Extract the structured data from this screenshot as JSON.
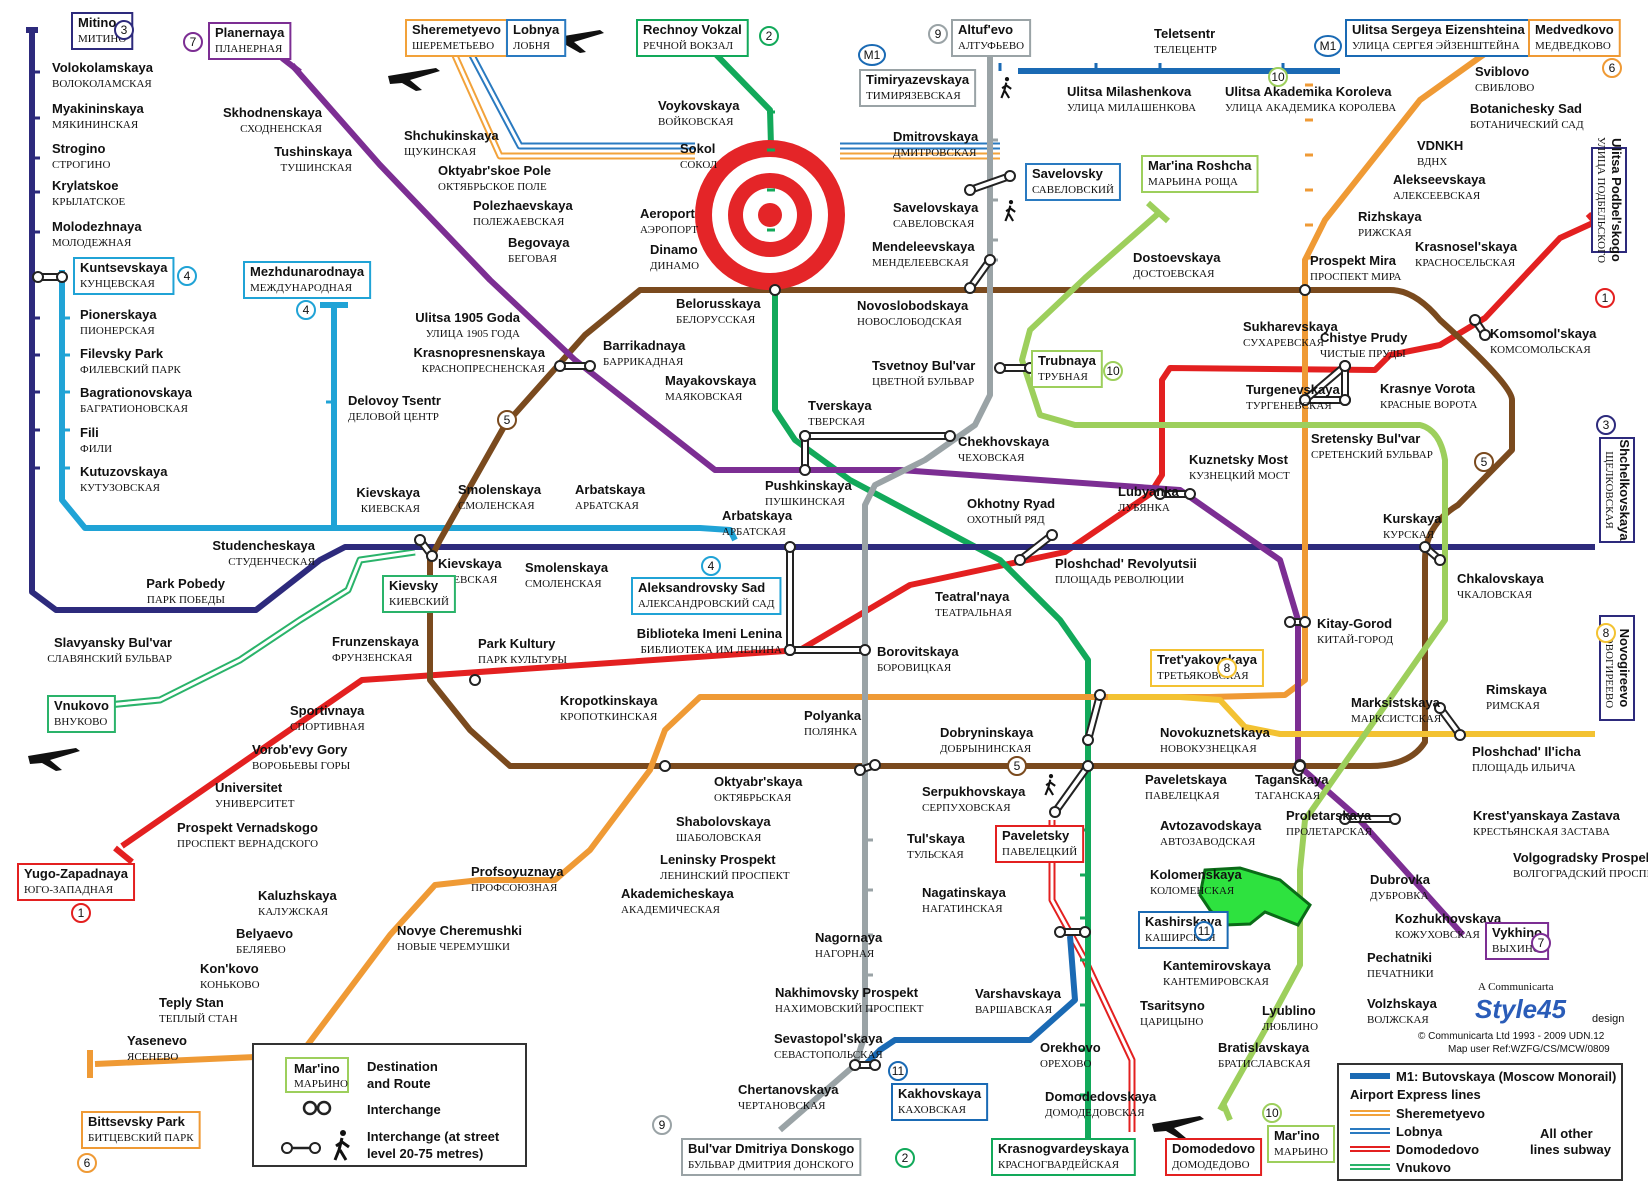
{
  "colors": {
    "line1": "#e32020",
    "line2": "#12a95a",
    "line3": "#2d2a7c",
    "line4": "#20a3d6",
    "line5": "#7a4a1e",
    "line6": "#ef9a35",
    "line7": "#7c2e93",
    "line8": "#f3c232",
    "line9": "#9aa3a6",
    "line10": "#9dcf5c",
    "line11": "#1a6ab4",
    "express_sheremetyevo": "#f2a23a",
    "express_lobnya": "#2a7ac0",
    "express_domodedovo": "#e32020",
    "express_vnukovo": "#2ab36a",
    "monorail": "#1a6ab4"
  },
  "stations": [
    {
      "id": "mitino",
      "en": "Mitino",
      "ru": "МИТИНО"
    },
    {
      "id": "volokolamskaya",
      "en": "Volokolamskaya",
      "ru": "ВОЛОКОЛАМСКАЯ"
    },
    {
      "id": "myakininskaya",
      "en": "Myakininskaya",
      "ru": "МЯКИНИНСКАЯ"
    },
    {
      "id": "strogino",
      "en": "Strogino",
      "ru": "СТРОГИНО"
    },
    {
      "id": "krylatskoe",
      "en": "Krylatskoe",
      "ru": "КРЫЛАТСКОЕ"
    },
    {
      "id": "molodezhnaya",
      "en": "Molodezhnaya",
      "ru": "МОЛОДЕЖНАЯ"
    },
    {
      "id": "kuntsevskaya",
      "en": "Kuntsevskaya",
      "ru": "КУНЦЕВСКАЯ"
    },
    {
      "id": "pionerskaya",
      "en": "Pionerskaya",
      "ru": "ПИОНЕРСКАЯ"
    },
    {
      "id": "filevsky_park",
      "en": "Filevsky Park",
      "ru": "ФИЛЕВСКИЙ ПАРК"
    },
    {
      "id": "bagrationovskaya",
      "en": "Bagrationovskaya",
      "ru": "БАГРАТИОНОВСКАЯ"
    },
    {
      "id": "fili",
      "en": "Fili",
      "ru": "ФИЛИ"
    },
    {
      "id": "kutuzovskaya",
      "en": "Kutuzovskaya",
      "ru": "КУТУЗОВСКАЯ"
    },
    {
      "id": "studencheskaya",
      "en": "Studencheskaya",
      "ru": "СТУДЕНЧЕСКАЯ"
    },
    {
      "id": "park_pobedy",
      "en": "Park Pobedy",
      "ru": "ПАРК ПОБЕДЫ"
    },
    {
      "id": "slavyansky",
      "en": "Slavyansky Bul'var",
      "ru": "СЛАВЯНСКИЙ БУЛЬВАР"
    },
    {
      "id": "planernaya",
      "en": "Planernaya",
      "ru": "ПЛАНЕРНАЯ"
    },
    {
      "id": "skhodnenskaya",
      "en": "Skhodnenskaya",
      "ru": "СХОДНЕНСКАЯ"
    },
    {
      "id": "tushinskaya",
      "en": "Tushinskaya",
      "ru": "ТУШИНСКАЯ"
    },
    {
      "id": "shchukinskaya",
      "en": "Shchukinskaya",
      "ru": "ЩУКИНСКАЯ"
    },
    {
      "id": "oktyabrskoe_pole",
      "en": "Oktyabr'skoe Pole",
      "ru": "ОКТЯБРЬСКОЕ ПОЛЕ"
    },
    {
      "id": "polezhaevskaya",
      "en": "Polezhaevskaya",
      "ru": "ПОЛЕЖАЕВСКАЯ"
    },
    {
      "id": "begovaya",
      "en": "Begovaya",
      "ru": "БЕГОВАЯ"
    },
    {
      "id": "ulitsa1905",
      "en": "Ulitsa 1905 Goda",
      "ru": "УЛИЦА 1905 ГОДА"
    },
    {
      "id": "barrikadnaya",
      "en": "Barrikadnaya",
      "ru": "БАРРИКАДНАЯ"
    },
    {
      "id": "krasnopresnenskaya",
      "en": "Krasnopresnenskaya",
      "ru": "КРАСНОПРЕСНЕНСКАЯ"
    },
    {
      "id": "mezhdunarodnaya",
      "en": "Mezhdunarodnaya",
      "ru": "МЕЖДУНАРОДНАЯ"
    },
    {
      "id": "delovoy",
      "en": "Delovoy Tsentr",
      "ru": "ДЕЛОВОЙ ЦЕНТР"
    },
    {
      "id": "kievskaya_a",
      "en": "Kievskaya",
      "ru": "КИЕВСКАЯ"
    },
    {
      "id": "kievskaya_b",
      "en": "Kievskaya",
      "ru": "КИЕВСКАЯ"
    },
    {
      "id": "smolenskaya_a",
      "en": "Smolenskaya",
      "ru": "СМОЛЕНСКАЯ"
    },
    {
      "id": "arbatskaya_a",
      "en": "Arbatskaya",
      "ru": "АРБАТСКАЯ"
    },
    {
      "id": "smolenskaya_b",
      "en": "Smolenskaya",
      "ru": "СМОЛЕНСКАЯ"
    },
    {
      "id": "arbatskaya_b",
      "en": "Arbatskaya",
      "ru": "АРБАТСКАЯ"
    },
    {
      "id": "aleksandrovsky",
      "en": "Aleksandrovsky Sad",
      "ru": "АЛЕКСАНДРОВСКИЙ САД"
    },
    {
      "id": "biblioteka",
      "en": "Biblioteka Imeni Lenina",
      "ru": "БИБЛИОТЕКА ИМ ЛЕНИНА"
    },
    {
      "id": "borovitskaya",
      "en": "Borovitskaya",
      "ru": "БОРОВИЦКАЯ"
    },
    {
      "id": "frunzenskaya",
      "en": "Frunzenskaya",
      "ru": "ФРУНЗЕНСКАЯ"
    },
    {
      "id": "park_kultury",
      "en": "Park Kultury",
      "ru": "ПАРК КУЛЬТУРЫ"
    },
    {
      "id": "kropotkinskaya",
      "en": "Kropotkinskaya",
      "ru": "КРОПОТКИНСКАЯ"
    },
    {
      "id": "sportivnaya",
      "en": "Sportivnaya",
      "ru": "СПОРТИВНАЯ"
    },
    {
      "id": "vorobevy",
      "en": "Vorob'evy Gory",
      "ru": "ВОРОБЬЕВЫ ГОРЫ"
    },
    {
      "id": "universitet",
      "en": "Universitet",
      "ru": "УНИВЕРСИТЕТ"
    },
    {
      "id": "prospekt_vernadskogo",
      "en": "Prospekt Vernadskogo",
      "ru": "ПРОСПЕКТ ВЕРНАДСКОГО"
    },
    {
      "id": "yugo_zapadnaya",
      "en": "Yugo-Zapadnaya",
      "ru": "ЮГО-ЗАПАДНАЯ"
    },
    {
      "id": "rechnoy",
      "en": "Rechnoy Vokzal",
      "ru": "РЕЧНОЙ ВОКЗАЛ"
    },
    {
      "id": "voykovskaya",
      "en": "Voykovskaya",
      "ru": "ВОЙКОВСКАЯ"
    },
    {
      "id": "sokol",
      "en": "Sokol",
      "ru": "СОКОЛ"
    },
    {
      "id": "aeroport",
      "en": "Aeroport",
      "ru": "АЭРОПОРТ"
    },
    {
      "id": "dinamo",
      "en": "Dinamo",
      "ru": "ДИНАМО"
    },
    {
      "id": "belorusskaya",
      "en": "Belorusskaya",
      "ru": "БЕЛОРУССКАЯ"
    },
    {
      "id": "mayakovskaya",
      "en": "Mayakovskaya",
      "ru": "МАЯКОВСКАЯ"
    },
    {
      "id": "tverskaya",
      "en": "Tverskaya",
      "ru": "ТВЕРСКАЯ"
    },
    {
      "id": "pushkinskaya",
      "en": "Pushkinskaya",
      "ru": "ПУШКИНСКАЯ"
    },
    {
      "id": "chekhovskaya",
      "en": "Chekhovskaya",
      "ru": "ЧЕХОВСКАЯ"
    },
    {
      "id": "okhotny",
      "en": "Okhotny Ryad",
      "ru": "ОХОТНЫЙ РЯД"
    },
    {
      "id": "teatralnaya",
      "en": "Teatral'naya",
      "ru": "ТЕАТРАЛЬНАЯ"
    },
    {
      "id": "ploshchad_rev",
      "en": "Ploshchad' Revolyutsii",
      "ru": "ПЛОЩАДЬ РЕВОЛЮЦИИ"
    },
    {
      "id": "altufevo",
      "en": "Altuf'evo",
      "ru": "АЛТУФЬЕВО"
    },
    {
      "id": "timiryazevskaya",
      "en": "Timiryazevskaya",
      "ru": "ТИМИРЯЗЕВСКАЯ"
    },
    {
      "id": "dmitrovskaya",
      "en": "Dmitrovskaya",
      "ru": "ДМИТРОВСКАЯ"
    },
    {
      "id": "savelovskaya",
      "en": "Savelovskaya",
      "ru": "САВЕЛОВСКАЯ"
    },
    {
      "id": "savelovsky",
      "en": "Savelovsky",
      "ru": "САВЕЛОВСКИЙ"
    },
    {
      "id": "mendeleevskaya",
      "en": "Mendeleevskaya",
      "ru": "МЕНДЕЛЕЕВСКАЯ"
    },
    {
      "id": "novoslobodskaya",
      "en": "Novoslobodskaya",
      "ru": "НОВОСЛОБОДСКАЯ"
    },
    {
      "id": "tsvetnoy",
      "en": "Tsvetnoy Bul'var",
      "ru": "ЦВЕТНОЙ БУЛЬВАР"
    },
    {
      "id": "trubnaya",
      "en": "Trubnaya",
      "ru": "ТРУБНАЯ"
    },
    {
      "id": "marina_roshcha",
      "en": "Mar'ina Roshcha",
      "ru": "МАРЬИНА РОЩА"
    },
    {
      "id": "dostoevskaya",
      "en": "Dostoevskaya",
      "ru": "ДОСТОЕВСКАЯ"
    },
    {
      "id": "teletsentr",
      "en": "Teletsentr",
      "ru": "ТЕЛЕЦЕНТР"
    },
    {
      "id": "ulitsa_milashenkova",
      "en": "Ulitsa Milashenkova",
      "ru": "УЛИЦА МИЛАШЕНКОВА"
    },
    {
      "id": "ulitsa_korolyova",
      "en": "Ulitsa Akademika Koroleva",
      "ru": "УЛИЦА АКАДЕМИКА КОРОЛЕВА"
    },
    {
      "id": "ulitsa_eizenshteina",
      "en": "Ulitsa Sergeya Eizenshteina",
      "ru": "УЛИЦА СЕРГЕЯ ЭЙЗЕНШТЕЙНА"
    },
    {
      "id": "medvedkovo",
      "en": "Medvedkovo",
      "ru": "МЕДВЕДКОВО"
    },
    {
      "id": "sviblovo",
      "en": "Sviblovo",
      "ru": "СВИБЛОВО"
    },
    {
      "id": "botanichesky",
      "en": "Botanichesky Sad",
      "ru": "БОТАНИЧЕСКИЙ САД"
    },
    {
      "id": "vdnkh",
      "en": "VDNKH",
      "ru": "ВДНХ"
    },
    {
      "id": "alekseevskaya",
      "en": "Alekseevskaya",
      "ru": "АЛЕКСЕЕВСКАЯ"
    },
    {
      "id": "rizhskaya",
      "en": "Rizhskaya",
      "ru": "РИЖСКАЯ"
    },
    {
      "id": "prospekt_mira",
      "en": "Prospekt Mira",
      "ru": "ПРОСПЕКТ МИРА"
    },
    {
      "id": "sukharevskaya",
      "en": "Sukharevskaya",
      "ru": "СУХАРЕВСКАЯ"
    },
    {
      "id": "podbelskogo",
      "en": "Ulitsa Podbel'skogo",
      "ru": "УЛИЦА ПОДБЕЛЬСКОГО"
    },
    {
      "id": "krasnoselskaya",
      "en": "Krasnosel'skaya",
      "ru": "КРАСНОСЕЛЬСКАЯ"
    },
    {
      "id": "komsomolskaya",
      "en": "Komsomol'skaya",
      "ru": "КОМСОМОЛЬСКАЯ"
    },
    {
      "id": "krasnye_vorota",
      "en": "Krasnye Vorota",
      "ru": "КРАСНЫЕ ВОРОТА"
    },
    {
      "id": "chistye_prudy",
      "en": "Chistye Prudy",
      "ru": "ЧИСТЫЕ ПРУДЫ"
    },
    {
      "id": "turgenevskaya",
      "en": "Turgenevskaya",
      "ru": "ТУРГЕНЕВСКАЯ"
    },
    {
      "id": "sretensky",
      "en": "Sretensky Bul'var",
      "ru": "СРЕТЕНСКИЙ БУЛЬВАР"
    },
    {
      "id": "kuznetsky",
      "en": "Kuznetsky Most",
      "ru": "КУЗНЕЦКИЙ МОСТ"
    },
    {
      "id": "lubyanka",
      "en": "Lubyanka",
      "ru": "ЛУБЯНКА"
    },
    {
      "id": "shchelkovskaya",
      "en": "Shchelkovskaya",
      "ru": "ЩЕЛКОВСКАЯ"
    },
    {
      "id": "kurskaya",
      "en": "Kurskaya",
      "ru": "КУРСКАЯ"
    },
    {
      "id": "chkalovskaya",
      "en": "Chkalovskaya",
      "ru": "ЧКАЛОВСКАЯ"
    },
    {
      "id": "kitay_gorod",
      "en": "Kitay-Gorod",
      "ru": "КИТАЙ-ГОРОД"
    },
    {
      "id": "novogireevo",
      "en": "Novogireevo",
      "ru": "НОВОГИРЕЕВО"
    },
    {
      "id": "tretyakovskaya",
      "en": "Tret'yakovskaya",
      "ru": "ТРЕТЬЯКОВСКАЯ"
    },
    {
      "id": "marksistskaya",
      "en": "Marksistskaya",
      "ru": "МАРКСИСТСКАЯ"
    },
    {
      "id": "rimskaya",
      "en": "Rimskaya",
      "ru": "РИМСКАЯ"
    },
    {
      "id": "ploshchad_ilicha",
      "en": "Ploshchad' Il'icha",
      "ru": "ПЛОЩАДЬ ИЛЬИЧА"
    },
    {
      "id": "polyanka",
      "en": "Polyanka",
      "ru": "ПОЛЯНКА"
    },
    {
      "id": "dobryninskaya",
      "en": "Dobryninskaya",
      "ru": "ДОБРЫНИНСКАЯ"
    },
    {
      "id": "novokuznetskaya",
      "en": "Novokuznetskaya",
      "ru": "НОВОКУЗНЕЦКАЯ"
    },
    {
      "id": "oktyabrskaya",
      "en": "Oktyabr'skaya",
      "ru": "ОКТЯБРЬСКАЯ"
    },
    {
      "id": "serpukhovskaya",
      "en": "Serpukhovskaya",
      "ru": "СЕРПУХОВСКАЯ"
    },
    {
      "id": "paveletskaya",
      "en": "Paveletskaya",
      "ru": "ПАВЕЛЕЦКАЯ"
    },
    {
      "id": "paveletsky",
      "en": "Paveletsky",
      "ru": "ПАВЕЛЕЦКИЙ"
    },
    {
      "id": "taganskaya",
      "en": "Taganskaya",
      "ru": "ТАГАНСКАЯ"
    },
    {
      "id": "proletarskaya",
      "en": "Proletarskaya",
      "ru": "ПРОЛЕТАРСКАЯ"
    },
    {
      "id": "krestyanskaya",
      "en": "Krest'yanskaya Zastava",
      "ru": "КРЕСТЬЯНСКАЯ ЗАСТАВА"
    },
    {
      "id": "volgogradsky",
      "en": "Volgogradsky Prospekt",
      "ru": "ВОЛГОГРАДСКИЙ ПРОСПЕКТ"
    },
    {
      "id": "shabolovskaya",
      "en": "Shabolovskaya",
      "ru": "ШАБОЛОВСКАЯ"
    },
    {
      "id": "leninsky",
      "en": "Leninsky Prospekt",
      "ru": "ЛЕНИНСКИЙ ПРОСПЕКТ"
    },
    {
      "id": "akademicheskaya",
      "en": "Akademicheskaya",
      "ru": "АКАДЕМИЧЕСКАЯ"
    },
    {
      "id": "profsoyuznaya",
      "en": "Profsoyuznaya",
      "ru": "ПРОФСОЮЗНАЯ"
    },
    {
      "id": "novye_cheremushki",
      "en": "Novye Cheremushki",
      "ru": "НОВЫЕ ЧЕРЕМУШКИ"
    },
    {
      "id": "kaluzhskaya",
      "en": "Kaluzhskaya",
      "ru": "КАЛУЖСКАЯ"
    },
    {
      "id": "belyaevo",
      "en": "Belyaevo",
      "ru": "БЕЛЯЕВО"
    },
    {
      "id": "konkovo",
      "en": "Kon'kovo",
      "ru": "КОНЬКОВО"
    },
    {
      "id": "teply_stan",
      "en": "Teply Stan",
      "ru": "ТЕПЛЫЙ СТАН"
    },
    {
      "id": "yasenevo",
      "en": "Yasenevo",
      "ru": "ЯСЕНЕВО"
    },
    {
      "id": "bittsevsky",
      "en": "Bittsevsky Park",
      "ru": "БИТЦЕВСКИЙ ПАРК"
    },
    {
      "id": "tulskaya",
      "en": "Tul'skaya",
      "ru": "ТУЛЬСКАЯ"
    },
    {
      "id": "nagatinskaya",
      "en": "Nagatinskaya",
      "ru": "НАГАТИНСКАЯ"
    },
    {
      "id": "nagornaya",
      "en": "Nagornaya",
      "ru": "НАГОРНАЯ"
    },
    {
      "id": "nakhimovsky",
      "en": "Nakhimovsky Prospekt",
      "ru": "НАХИМОВСКИЙ ПРОСПЕКТ"
    },
    {
      "id": "sevastopolskaya",
      "en": "Sevastopol'skaya",
      "ru": "СЕВАСТОПОЛЬСКАЯ"
    },
    {
      "id": "chertanovskaya",
      "en": "Chertanovskaya",
      "ru": "ЧЕРТАНОВСКАЯ"
    },
    {
      "id": "dmitriya_donskogo",
      "en": "Bul'var Dmitriya Donskogo",
      "ru": "БУЛЬВАР ДМИТРИЯ ДОНСКОГО"
    },
    {
      "id": "avtozavodskaya",
      "en": "Avtozavodskaya",
      "ru": "АВТОЗАВОДСКАЯ"
    },
    {
      "id": "kolomenskaya",
      "en": "Kolomenskaya",
      "ru": "КОЛОМЕНСКАЯ"
    },
    {
      "id": "kashirskaya",
      "en": "Kashirskaya",
      "ru": "КАШИРСКАЯ"
    },
    {
      "id": "kantemirovskaya",
      "en": "Kantemirovskaya",
      "ru": "КАНТЕМИРОВСКАЯ"
    },
    {
      "id": "tsaritsyno",
      "en": "Tsaritsyno",
      "ru": "ЦАРИЦЫНО"
    },
    {
      "id": "orekhovo",
      "en": "Orekhovo",
      "ru": "ОРЕХОВО"
    },
    {
      "id": "domodedovskaya",
      "en": "Domodedovskaya",
      "ru": "ДОМОДЕДОВСКАЯ"
    },
    {
      "id": "krasnogvardeyskaya",
      "en": "Krasnogvardeyskaya",
      "ru": "КРАСНОГВАРДЕЙСКАЯ"
    },
    {
      "id": "varshavskaya",
      "en": "Varshavskaya",
      "ru": "ВАРШАВСКАЯ"
    },
    {
      "id": "kakhovskaya",
      "en": "Kakhovskaya",
      "ru": "КАХОВСКАЯ"
    },
    {
      "id": "dubrovka",
      "en": "Dubrovka",
      "ru": "ДУБРОВКА"
    },
    {
      "id": "kozhukhovskaya",
      "en": "Kozhukhovskaya",
      "ru": "КОЖУХОВСКАЯ"
    },
    {
      "id": "pechatniki",
      "en": "Pechatniki",
      "ru": "ПЕЧАТНИКИ"
    },
    {
      "id": "volzhskaya",
      "en": "Volzhskaya",
      "ru": "ВОЛЖСКАЯ"
    },
    {
      "id": "lyublino",
      "en": "Lyublino",
      "ru": "ЛЮБЛИНО"
    },
    {
      "id": "bratislavskaya",
      "en": "Bratislavskaya",
      "ru": "БРАТИСЛАВСКАЯ"
    },
    {
      "id": "marino",
      "en": "Mar'ino",
      "ru": "МАРЬИНО"
    },
    {
      "id": "vykhino",
      "en": "Vykhino",
      "ru": "ВЫХИНО"
    },
    {
      "id": "kievsky",
      "en": "Kievsky",
      "ru": "КИЕВСКИЙ"
    },
    {
      "id": "vnukovo",
      "en": "Vnukovo",
      "ru": "ВНУКОВО"
    },
    {
      "id": "sheremetyevo",
      "en": "Sheremetyevo",
      "ru": "ШЕРЕМЕТЬЕВО"
    },
    {
      "id": "lobnya",
      "en": "Lobnya",
      "ru": "ЛОБНЯ"
    },
    {
      "id": "domodedovo",
      "en": "Domodedovo",
      "ru": "ДОМОДЕДОВО"
    }
  ],
  "line_numbers": [
    "1",
    "2",
    "3",
    "4",
    "5",
    "6",
    "7",
    "8",
    "9",
    "10",
    "11"
  ],
  "monorail_badge": "M1",
  "legend": {
    "destination_label": "Destination",
    "route_label": "and Route",
    "example_en": "Mar'ino",
    "example_ru": "МАРЬИНО",
    "example_num": "10",
    "interchange": "Interchange",
    "street_1": "Interchange (at street",
    "street_2": "level 20-75 metres)",
    "monorail": "M1: Butovskaya (Moscow Monorail)",
    "express_title": "Airport Express lines",
    "express": [
      "Sheremetyevo",
      "Lobnya",
      "Domodedovo",
      "Vnukovo"
    ],
    "other_1": "All other",
    "other_2": "lines subway"
  },
  "credits": {
    "a_communicarta": "A Communicarta",
    "brand": "Style45",
    "design": "design",
    "copyright": "© Communicarta Ltd 1993 - 2009 UDN.12",
    "map_ref": "Map user Ref:WZFG/CS/MCW/0809"
  }
}
